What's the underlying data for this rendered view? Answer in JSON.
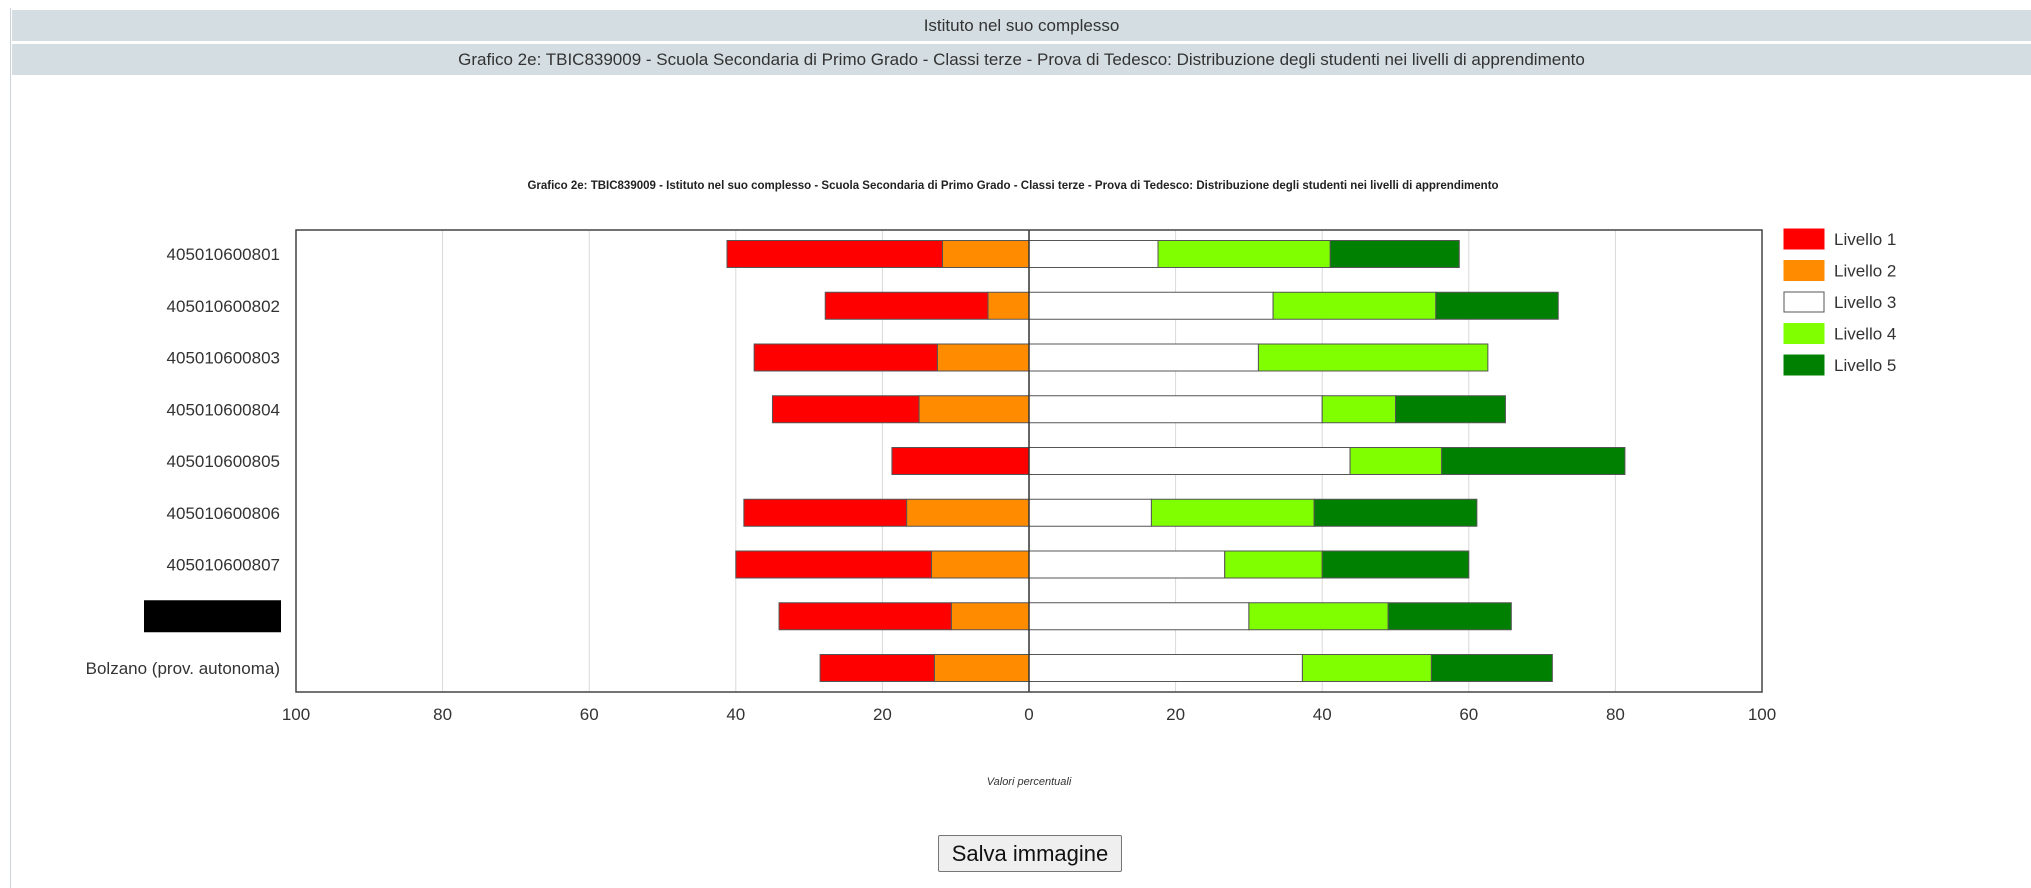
{
  "header": {
    "title": "Istituto nel suo complesso",
    "subtitle": "Grafico 2e: TBIC839009 - Scuola Secondaria di Primo Grado - Classi terze - Prova di Tedesco: Distribuzione degli studenti nei livelli di apprendimento"
  },
  "save_button_label": "Salva immagine",
  "chart_data": {
    "type": "bar",
    "orientation": "horizontal-diverging",
    "title": "Grafico 2e: TBIC839009 - Istituto nel suo complesso - Scuola Secondaria di Primo Grado - Classi terze - Prova di Tedesco: Distribuzione degli studenti nei livelli di apprendimento",
    "xlabel": "Valori percentuali",
    "xlim": [
      -100,
      100
    ],
    "xticks": [
      -100,
      -80,
      -60,
      -40,
      -20,
      0,
      20,
      40,
      60,
      80,
      100
    ],
    "xtick_labels": [
      "100",
      "80",
      "60",
      "40",
      "20",
      "0",
      "20",
      "40",
      "60",
      "80",
      "100"
    ],
    "grid": true,
    "legend_position": "top-right",
    "categories": [
      "405010600801",
      "405010600802",
      "405010600803",
      "405010600804",
      "405010600805",
      "405010600806",
      "405010600807",
      "",
      "Bolzano (prov. autonoma)"
    ],
    "redacted_category_index": 7,
    "series": [
      {
        "name": "Livello 1",
        "color": "#ff0000",
        "side": "left",
        "values": [
          29.4,
          22.2,
          25.0,
          20.0,
          18.7,
          22.2,
          26.7,
          23.5,
          15.6
        ]
      },
      {
        "name": "Livello 2",
        "color": "#ff8c00",
        "side": "left",
        "values": [
          11.8,
          5.6,
          12.5,
          15.0,
          0.0,
          16.7,
          13.3,
          10.6,
          12.9
        ]
      },
      {
        "name": "Livello 3",
        "color": "#ffffff",
        "side": "right",
        "values": [
          17.6,
          33.3,
          31.3,
          40.0,
          43.8,
          16.7,
          26.7,
          30.0,
          37.3
        ]
      },
      {
        "name": "Livello 4",
        "color": "#7fff00",
        "side": "right",
        "values": [
          23.5,
          22.2,
          31.3,
          10.0,
          12.5,
          22.2,
          13.3,
          19.0,
          17.6
        ]
      },
      {
        "name": "Livello 5",
        "color": "#008000",
        "side": "right",
        "values": [
          17.6,
          16.7,
          0.0,
          15.0,
          25.0,
          22.2,
          20.0,
          16.8,
          16.5
        ]
      }
    ]
  }
}
